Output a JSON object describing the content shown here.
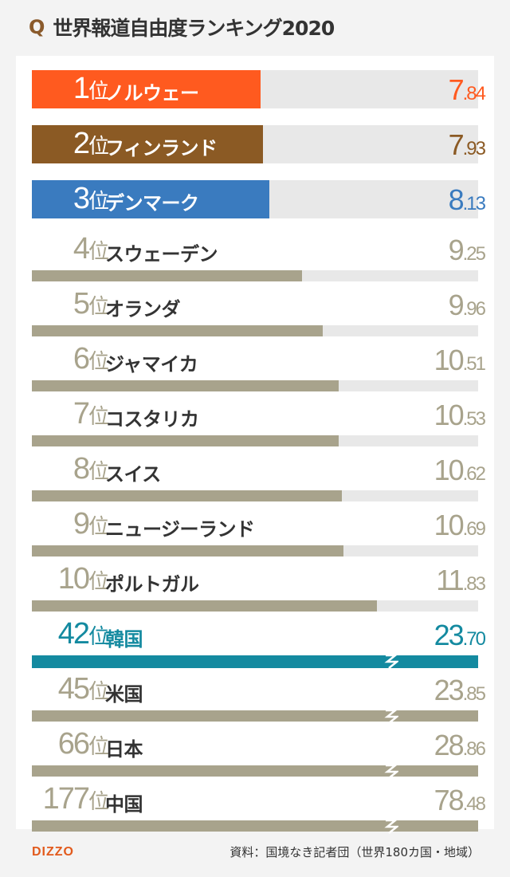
{
  "title": "世界報道自由度ランキング2020",
  "title_icon": "q-mark",
  "title_icon_text": "Q",
  "colors": {
    "rank1": "#ff5a1f",
    "rank2": "#8b5a24",
    "rank3": "#3a7bbf",
    "gray": "#a8a38c",
    "korea": "#148aa0",
    "track": "#e8e8e8",
    "name_dark": "#333333"
  },
  "chart_data": {
    "type": "bar",
    "title": "世界報道自由度ランキング2020",
    "categories": [
      "ノルウェー",
      "フィンランド",
      "デンマーク",
      "スウェーデン",
      "オランダ",
      "ジャマイカ",
      "コスタリカ",
      "スイス",
      "ニュージーランド",
      "ポルトガル",
      "韓国",
      "米国",
      "日本",
      "中国"
    ],
    "ranks": [
      "1",
      "2",
      "3",
      "4",
      "5",
      "6",
      "7",
      "8",
      "9",
      "10",
      "42",
      "45",
      "66",
      "177"
    ],
    "rank_unit": "位",
    "values": [
      7.84,
      7.93,
      8.13,
      9.25,
      9.96,
      10.51,
      10.53,
      10.62,
      10.69,
      11.83,
      23.7,
      23.85,
      28.86,
      78.48
    ],
    "value_labels_int": [
      "7",
      "7",
      "8",
      "9",
      "9",
      "10",
      "10",
      "10",
      "10",
      "11",
      "23",
      "23",
      "28",
      "78"
    ],
    "value_labels_dec": [
      ".84",
      ".93",
      ".13",
      ".25",
      ".96",
      ".51",
      ".53",
      ".62",
      ".69",
      ".83",
      ".70",
      ".85",
      ".86",
      ".48"
    ],
    "axis_break_after_index": 9,
    "grid": false,
    "legend": "none"
  },
  "source": "資料：国境なき記者団（世界180カ国・地域）",
  "logo": "DIZZO"
}
